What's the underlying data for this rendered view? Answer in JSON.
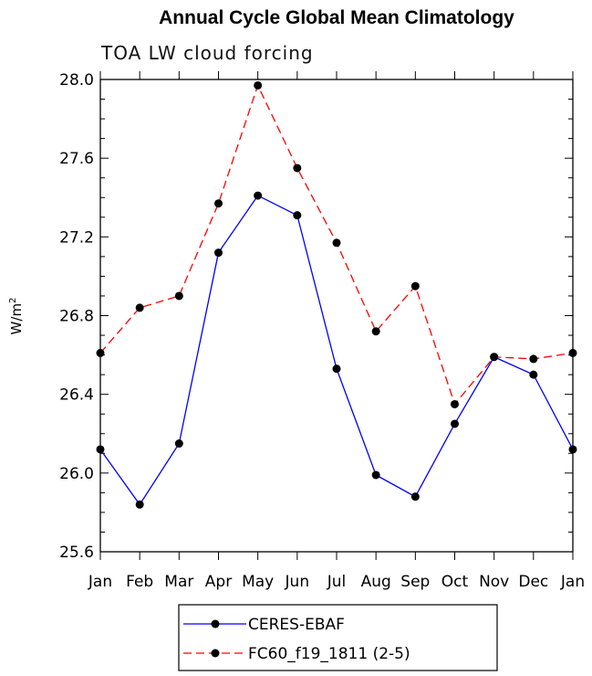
{
  "chart_data": {
    "type": "line",
    "title": "Annual Cycle Global Mean Climatology",
    "subtitle": "TOA LW cloud forcing",
    "ylabel_base": "W/m",
    "ylabel_sup": "2",
    "categories": [
      "Jan",
      "Feb",
      "Mar",
      "Apr",
      "May",
      "Jun",
      "Jul",
      "Aug",
      "Sep",
      "Oct",
      "Nov",
      "Dec",
      "Jan"
    ],
    "ylim": [
      25.6,
      28.0
    ],
    "yticks": [
      25.6,
      26.0,
      26.4,
      26.8,
      27.2,
      27.6,
      28.0
    ],
    "ytick_labels": [
      "25.6",
      "26.0",
      "26.4",
      "26.8",
      "27.2",
      "27.6",
      "28.0"
    ],
    "series": [
      {
        "name": "CERES-EBAF",
        "color": "#0000ff",
        "dash": "solid",
        "values": [
          26.12,
          25.84,
          26.15,
          27.12,
          27.41,
          27.31,
          26.53,
          25.99,
          25.88,
          26.25,
          26.59,
          26.5,
          26.12
        ]
      },
      {
        "name": "FC60_f19_1811 (2-5)",
        "color": "#ff0000",
        "dash": "dashed",
        "values": [
          26.61,
          26.84,
          26.9,
          27.37,
          27.97,
          27.55,
          27.17,
          26.72,
          26.95,
          26.35,
          26.59,
          26.58,
          26.61
        ]
      }
    ],
    "legend_position": "bottom"
  }
}
